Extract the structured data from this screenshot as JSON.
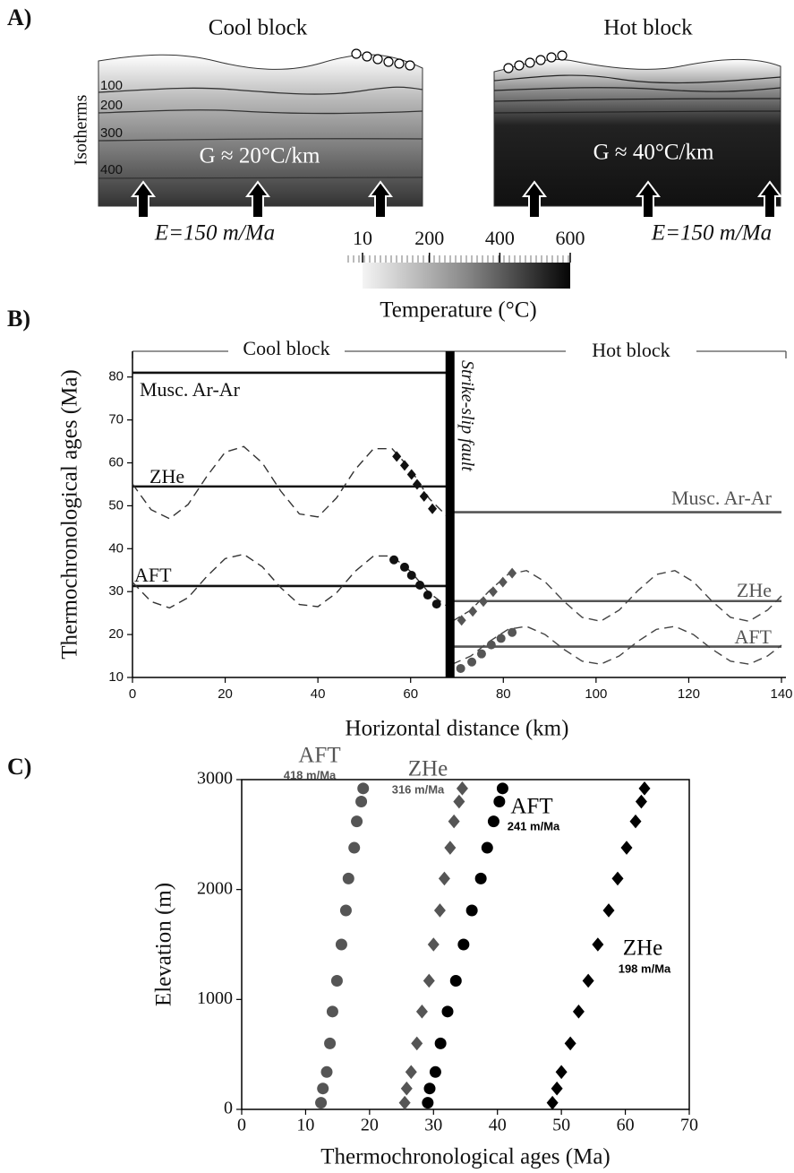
{
  "panel_labels": [
    "A)",
    "B)",
    "C)"
  ],
  "diagram": {
    "cool_block": {
      "title": "Cool block",
      "isotherm_axis": "Isotherms",
      "isotherms": [
        100,
        200,
        300,
        400
      ],
      "gradient": "G ≈ 20°C/km",
      "erosion": "E=150 m/Ma"
    },
    "hot_block": {
      "title": "Hot block",
      "gradient": "G ≈ 40°C/km",
      "erosion": "E=150 m/Ma"
    },
    "colorbar": {
      "label": "Temperature (°C)",
      "lim": [
        10,
        600
      ],
      "ticks": [
        10,
        200,
        400,
        600
      ]
    }
  },
  "chart_data": [
    {
      "type": "line",
      "x_label": "Horizontal distance (km)",
      "y_label": "Thermochronological ages (Ma)",
      "xlim": [
        0,
        140
      ],
      "xticks": [
        0,
        20,
        40,
        60,
        80,
        100,
        120,
        140
      ],
      "ylim": [
        10,
        86
      ],
      "yticks": [
        10,
        20,
        30,
        40,
        50,
        60,
        70,
        80
      ],
      "blocks": [
        "Cool block",
        "Hot block"
      ],
      "fault": {
        "label": "Strike-slip fault",
        "x": 68.5
      },
      "series": [
        {
          "name": "Musc. Ar-Ar",
          "color": "#111111",
          "style": "solid",
          "x": [
            0,
            68
          ],
          "values": [
            81,
            81
          ]
        },
        {
          "name": "ZHe",
          "color": "#111111",
          "style": "solid",
          "x": [
            0,
            68
          ],
          "values": [
            54.5,
            54.5
          ]
        },
        {
          "name": "AFT",
          "color": "#111111",
          "style": "solid",
          "x": [
            0,
            68
          ],
          "values": [
            31.3,
            31.3
          ]
        },
        {
          "color": "#333333",
          "style": "dashed",
          "x": [
            0,
            4,
            8,
            12,
            16,
            20,
            24,
            28,
            32,
            36,
            40,
            44,
            48,
            52,
            56,
            60,
            64,
            68
          ],
          "values": [
            55.1,
            49.1,
            47.0,
            50.3,
            56.8,
            62.5,
            63.8,
            60.0,
            53.4,
            48.1,
            47.4,
            51.8,
            58.4,
            63.3,
            63.3,
            58.5,
            51.7,
            47.4
          ]
        },
        {
          "color": "#333333",
          "style": "dashed",
          "x": [
            0,
            4,
            8,
            12,
            16,
            20,
            24,
            28,
            32,
            36,
            40,
            44,
            48,
            52,
            56,
            60,
            64,
            68
          ],
          "values": [
            32.2,
            27.7,
            26.2,
            28.6,
            33.5,
            37.7,
            38.7,
            35.8,
            30.9,
            27.0,
            26.5,
            29.7,
            34.7,
            38.3,
            38.3,
            34.7,
            29.7,
            26.5
          ]
        },
        {
          "color": "#111111",
          "style": "markers",
          "marker": "diamond",
          "x": [
            57,
            58.7,
            60.2,
            61.4,
            62.9,
            64.7
          ],
          "values": [
            61.5,
            59.4,
            57.3,
            55,
            52.2,
            49.3
          ]
        },
        {
          "color": "#111111",
          "style": "markers",
          "marker": "circle",
          "x": [
            56.4,
            58.7,
            60.2,
            62,
            63.7,
            65.6
          ],
          "values": [
            37.4,
            35.7,
            33.8,
            31.5,
            29.2,
            27.1
          ]
        },
        {
          "name": "Musc. Ar-Ar",
          "color": "#555555",
          "style": "solid",
          "x": [
            69,
            140
          ],
          "values": [
            48.5,
            48.5
          ]
        },
        {
          "name": "ZHe",
          "color": "#555555",
          "style": "solid",
          "x": [
            69,
            140
          ],
          "values": [
            27.8,
            27.8
          ]
        },
        {
          "name": "AFT",
          "color": "#555555",
          "style": "solid",
          "x": [
            69,
            140
          ],
          "values": [
            17.2,
            17.2
          ]
        },
        {
          "color": "#444444",
          "style": "dashed",
          "x": [
            69,
            73,
            77,
            81,
            85,
            89,
            93,
            97,
            101,
            105,
            109,
            113,
            117,
            121,
            125,
            129,
            133,
            137,
            140
          ],
          "values": [
            23.1,
            25.7,
            30.2,
            34.0,
            34.9,
            32.3,
            27.8,
            24.0,
            23.1,
            25.7,
            30.2,
            34.0,
            34.9,
            32.3,
            27.8,
            24.0,
            23.1,
            25.7,
            29.0
          ]
        },
        {
          "color": "#444444",
          "style": "dashed",
          "x": [
            69,
            73,
            77,
            81,
            85,
            89,
            93,
            97,
            101,
            105,
            109,
            113,
            117,
            121,
            125,
            129,
            133,
            137,
            140
          ],
          "values": [
            13.1,
            15.0,
            18.4,
            21.2,
            21.9,
            20.0,
            16.6,
            13.8,
            13.1,
            15.0,
            18.4,
            21.2,
            21.9,
            20.0,
            16.6,
            13.8,
            13.1,
            15.0,
            17.5
          ]
        },
        {
          "color": "#555555",
          "style": "markers",
          "marker": "diamond",
          "x": [
            71,
            73.4,
            75.7,
            77.8,
            79.9,
            81.9
          ],
          "values": [
            23.3,
            25.4,
            27.7,
            30,
            32.2,
            34.3
          ]
        },
        {
          "color": "#555555",
          "style": "markers",
          "marker": "circle",
          "x": [
            70.8,
            73.2,
            75.3,
            77.4,
            79.5,
            81.9
          ],
          "values": [
            12.1,
            13.6,
            15.5,
            17.6,
            19.1,
            20.5
          ]
        }
      ]
    },
    {
      "type": "scatter",
      "x_label": "Thermochronological ages (Ma)",
      "y_label": "Elevation (m)",
      "xlim": [
        0,
        70
      ],
      "xticks": [
        0,
        10,
        20,
        30,
        40,
        50,
        60,
        70
      ],
      "ylim": [
        0,
        3000
      ],
      "yticks": [
        0,
        1000,
        2000,
        3000
      ],
      "series": [
        {
          "name": "AFT",
          "rate": "418 m/Ma",
          "color": "#555555",
          "marker": "circle",
          "x": [
            19.0,
            18.7,
            18.0,
            17.6,
            16.7,
            16.3,
            15.6,
            14.9,
            14.2,
            13.8,
            13.3,
            12.7,
            12.4
          ],
          "values": [
            2920,
            2800,
            2620,
            2380,
            2100,
            1810,
            1500,
            1170,
            890,
            600,
            340,
            190,
            60
          ]
        },
        {
          "name": "ZHe",
          "rate": "316 m/Ma",
          "color": "#555555",
          "marker": "diamond",
          "x": [
            34.5,
            34.0,
            33.2,
            32.6,
            31.7,
            31.0,
            30.0,
            29.3,
            28.2,
            27.4,
            26.5,
            25.8,
            25.5
          ],
          "values": [
            2920,
            2800,
            2620,
            2380,
            2100,
            1810,
            1500,
            1170,
            890,
            600,
            340,
            190,
            60
          ]
        },
        {
          "name": "AFT",
          "rate": "241 m/Ma",
          "color": "#000000",
          "marker": "circle",
          "x": [
            40.8,
            40.3,
            39.4,
            38.4,
            37.4,
            36.0,
            34.7,
            33.5,
            32.2,
            31.1,
            30.3,
            29.4,
            29.1
          ],
          "values": [
            2920,
            2800,
            2620,
            2380,
            2100,
            1810,
            1500,
            1170,
            890,
            600,
            340,
            190,
            60
          ]
        },
        {
          "name": "ZHe",
          "rate": "198 m/Ma",
          "color": "#000000",
          "marker": "diamond",
          "x": [
            63.0,
            62.5,
            61.6,
            60.2,
            58.8,
            57.4,
            55.7,
            54.2,
            52.7,
            51.4,
            50.0,
            49.3,
            48.6
          ],
          "values": [
            2920,
            2800,
            2620,
            2380,
            2100,
            1810,
            1500,
            1170,
            890,
            600,
            340,
            190,
            60
          ]
        }
      ]
    }
  ]
}
